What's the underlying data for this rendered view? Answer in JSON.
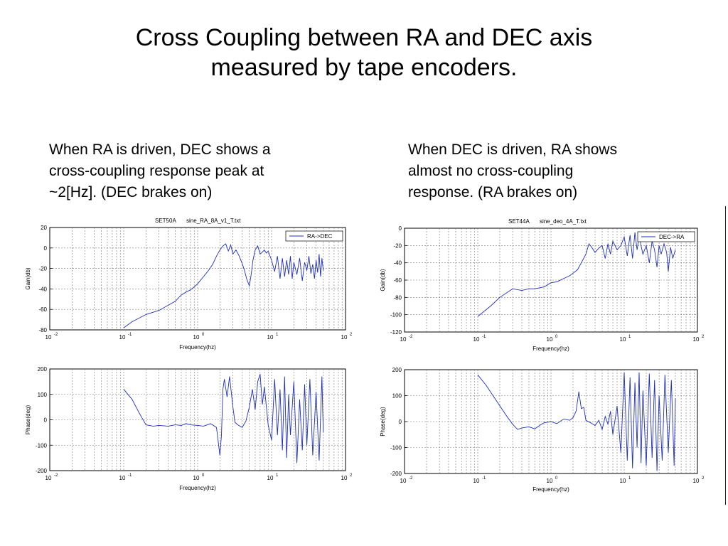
{
  "slide": {
    "title_line1": "Cross Coupling between RA and DEC axis",
    "title_line2": "measured by tape encoders.",
    "caption_left": "When RA is driven, DEC shows a\ncross-coupling response  peak at\n~2[Hz]. (DEC brakes on)",
    "caption_right": "When DEC is driven, RA shows\nalmost no  cross-coupling\nresponse. (RA brakes on)"
  },
  "colors": {
    "trace": "#1f2fb8",
    "grid": "#777777",
    "axis": "#000000"
  },
  "chart_data": [
    {
      "id": "left-gain",
      "type": "line",
      "title_left": "SET50A",
      "title_right": "sine_RA_8A_v1_T.txt",
      "xlabel": "Frequency(hz)",
      "ylabel": "Gain(db)",
      "xscale": "log",
      "xlim": [
        0.01,
        100
      ],
      "ylim": [
        -80,
        20
      ],
      "yticks": [
        -80,
        -60,
        -40,
        -20,
        0,
        20
      ],
      "xtick_exponents": [
        "-2",
        "-1",
        "0",
        "1",
        "2"
      ],
      "legend": "RA->DEC",
      "legend_position": "top-right",
      "grid": true,
      "series": [
        {
          "name": "RA->DEC",
          "x": [
            0.1,
            0.13,
            0.2,
            0.3,
            0.4,
            0.5,
            0.6,
            0.7,
            0.8,
            0.9,
            1.0,
            1.2,
            1.4,
            1.6,
            1.8,
            2.0,
            2.2,
            2.4,
            2.6,
            2.8,
            3.0,
            3.3,
            3.6,
            4.0,
            4.3,
            4.6,
            5.0,
            5.3,
            5.6,
            6.0,
            6.5,
            7.0,
            7.5,
            8.0,
            8.5,
            9.0,
            10,
            11,
            12,
            13,
            14,
            15,
            16,
            17,
            18,
            19,
            20,
            22,
            24,
            26,
            28,
            30,
            32,
            34,
            36,
            38,
            40,
            42,
            44,
            46,
            48,
            50
          ],
          "y": [
            -78,
            -72,
            -65,
            -61,
            -56,
            -52,
            -46,
            -43,
            -41,
            -38,
            -35,
            -28,
            -22,
            -16,
            -8,
            -2,
            2,
            4,
            -3,
            3,
            -6,
            -2,
            -7,
            -15,
            -22,
            -30,
            -37,
            -26,
            -12,
            -2,
            2,
            -6,
            -4,
            -2,
            -5,
            -3,
            -12,
            -23,
            -8,
            -30,
            -10,
            -28,
            -12,
            -26,
            -8,
            -30,
            -14,
            -26,
            -10,
            -32,
            -14,
            -22,
            -8,
            -25,
            -16,
            -30,
            -12,
            -24,
            -6,
            -28,
            -10,
            -22
          ]
        }
      ]
    },
    {
      "id": "right-gain",
      "type": "line",
      "title_left": "SET44A",
      "title_right": "sine_deo_4A_T.txt",
      "xlabel": "Frequency(hz)",
      "ylabel": "Gain(db)",
      "xscale": "log",
      "xlim": [
        0.01,
        100
      ],
      "ylim": [
        -120,
        0
      ],
      "yticks": [
        -120,
        -100,
        -80,
        -60,
        -40,
        -20,
        0
      ],
      "xtick_exponents": [
        "-2",
        "-1",
        "0",
        "1",
        "2"
      ],
      "legend": "DEC->RA",
      "legend_position": "top-right",
      "grid": true,
      "series": [
        {
          "name": "DEC->RA",
          "x": [
            0.1,
            0.15,
            0.2,
            0.3,
            0.4,
            0.5,
            0.6,
            0.8,
            1.0,
            1.2,
            1.5,
            1.8,
            2.0,
            2.3,
            2.6,
            3.0,
            3.3,
            3.6,
            4.0,
            4.5,
            5.0,
            5.5,
            6.0,
            6.5,
            7.0,
            8.0,
            9.0,
            10,
            11,
            12,
            13,
            14,
            15,
            16,
            18,
            20,
            22,
            24,
            26,
            28,
            30,
            32,
            35,
            38,
            40,
            43,
            46,
            50
          ],
          "y": [
            -102,
            -90,
            -80,
            -70,
            -72,
            -70,
            -70,
            -68,
            -63,
            -62,
            -58,
            -55,
            -52,
            -48,
            -40,
            -30,
            -18,
            -22,
            -28,
            -23,
            -20,
            -35,
            -18,
            -30,
            -15,
            -25,
            -20,
            -10,
            -32,
            -8,
            -35,
            -5,
            -25,
            -10,
            -30,
            -20,
            -40,
            -15,
            -25,
            -45,
            -20,
            -30,
            -18,
            -28,
            -50,
            -22,
            -35,
            -25
          ]
        }
      ]
    },
    {
      "id": "left-phase",
      "type": "line",
      "xlabel": "Frequency(hz)",
      "ylabel": "Phase(deg)",
      "xscale": "log",
      "xlim": [
        0.01,
        100
      ],
      "ylim": [
        -200,
        200
      ],
      "yticks": [
        -200,
        -100,
        0,
        100,
        200
      ],
      "xtick_exponents": [
        "-2",
        "-1",
        "0",
        "1",
        "2"
      ],
      "grid": true,
      "series": [
        {
          "x": [
            0.1,
            0.13,
            0.16,
            0.2,
            0.25,
            0.3,
            0.4,
            0.5,
            0.6,
            0.7,
            0.8,
            1.0,
            1.2,
            1.5,
            1.8,
            2.0,
            2.1,
            2.2,
            2.3,
            2.5,
            2.7,
            3.0,
            3.2,
            3.5,
            4.0,
            4.5,
            5.0,
            5.5,
            6.0,
            6.5,
            7.0,
            7.5,
            8.0,
            9.0,
            10,
            11,
            12,
            13,
            14,
            15,
            16,
            17,
            18,
            20,
            22,
            24,
            26,
            28,
            30,
            33,
            36,
            40,
            44,
            48,
            50
          ],
          "y": [
            120,
            80,
            30,
            -20,
            -25,
            -22,
            -25,
            -20,
            -22,
            -15,
            -20,
            -22,
            -25,
            -15,
            -30,
            -140,
            -60,
            120,
            160,
            90,
            170,
            50,
            -10,
            -20,
            -30,
            -5,
            50,
            120,
            40,
            150,
            180,
            60,
            130,
            -20,
            -80,
            160,
            -60,
            120,
            -120,
            170,
            -150,
            100,
            -60,
            150,
            -170,
            80,
            -120,
            140,
            -100,
            160,
            -140,
            110,
            -160,
            170,
            -50
          ]
        }
      ]
    },
    {
      "id": "right-phase",
      "type": "line",
      "xlabel": "Frequency(hz)",
      "ylabel": "Phase(deg)",
      "xscale": "log",
      "xlim": [
        0.01,
        100
      ],
      "ylim": [
        -200,
        200
      ],
      "yticks": [
        -200,
        -100,
        0,
        100,
        200
      ],
      "xtick_exponents": [
        "-2",
        "-1",
        "0",
        "1",
        "2"
      ],
      "grid": true,
      "series": [
        {
          "x": [
            0.1,
            0.13,
            0.18,
            0.25,
            0.3,
            0.35,
            0.4,
            0.5,
            0.6,
            0.7,
            0.8,
            1.0,
            1.2,
            1.5,
            1.8,
            2.0,
            2.2,
            2.4,
            2.6,
            2.8,
            3.0,
            3.5,
            4.0,
            4.5,
            5.0,
            5.5,
            6.0,
            6.5,
            7.0,
            8.0,
            9.0,
            10,
            11,
            12,
            13,
            14,
            15,
            16,
            17,
            18,
            20,
            22,
            24,
            26,
            28,
            30,
            33,
            36,
            40,
            44,
            48,
            50
          ],
          "y": [
            180,
            140,
            80,
            20,
            -10,
            -30,
            -25,
            -20,
            -28,
            -15,
            -5,
            0,
            -8,
            10,
            5,
            15,
            40,
            115,
            50,
            55,
            5,
            -5,
            -15,
            5,
            -30,
            20,
            -10,
            40,
            -50,
            60,
            -120,
            190,
            -150,
            170,
            -180,
            150,
            -100,
            190,
            -160,
            120,
            -170,
            185,
            -140,
            160,
            -190,
            100,
            -150,
            180,
            -120,
            160,
            -170,
            90
          ]
        }
      ]
    }
  ]
}
